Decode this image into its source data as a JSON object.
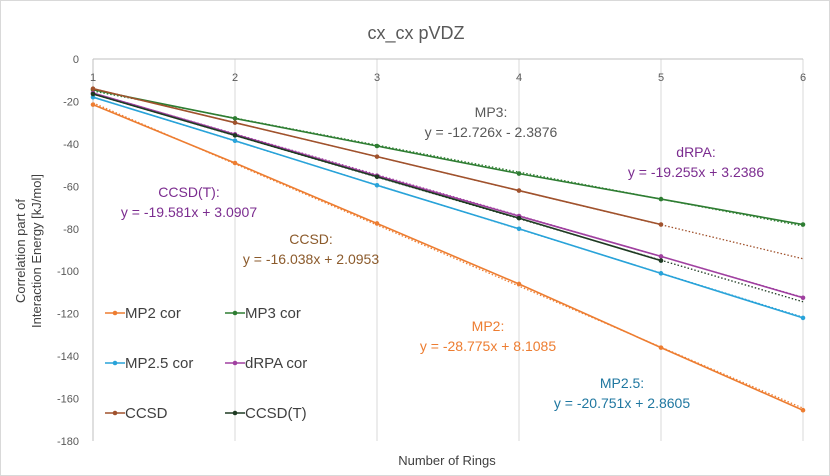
{
  "chart_data": {
    "type": "line",
    "title": "cx_cx pVDZ",
    "xlabel": "Number of Rings",
    "ylabel_lines": [
      "Correlation part of",
      "Interaction Energy  [kJ/mol]"
    ],
    "xlim": [
      1,
      6
    ],
    "ylim": [
      -180,
      0
    ],
    "x_ticks": [
      1,
      2,
      3,
      4,
      5,
      6
    ],
    "y_ticks": [
      0,
      -20,
      -40,
      -60,
      -80,
      -100,
      -120,
      -140,
      -160,
      -180
    ],
    "x_axis_position": "top",
    "grid": "vertical",
    "legend": "inside-bottom-left",
    "series": [
      {
        "name": "MP2 cor",
        "color": "#ED7D31",
        "x": [
          1,
          2,
          3,
          4,
          5,
          6
        ],
        "y": [
          -21.5,
          -49,
          -77.5,
          -106,
          -136,
          -165.5
        ],
        "trend": [
          -28.775,
          8.1085
        ],
        "trend_end": 6
      },
      {
        "name": "MP3 cor",
        "color": "#2E7D32",
        "x": [
          1,
          2,
          3,
          4,
          5,
          6
        ],
        "y": [
          -14.5,
          -28,
          -41,
          -54,
          -66,
          -78
        ],
        "trend": [
          -12.726,
          -2.3876
        ],
        "trend_end": 6
      },
      {
        "name": "MP2.5 cor",
        "color": "#29A3D9",
        "x": [
          1,
          2,
          3,
          4,
          5,
          6
        ],
        "y": [
          -18,
          -38.5,
          -59.5,
          -80,
          -101,
          -122
        ],
        "trend": [
          -20.751,
          2.8605
        ],
        "trend_end": 6
      },
      {
        "name": "dRPA cor",
        "color": "#A040A0",
        "x": [
          1,
          2,
          3,
          4,
          5,
          6
        ],
        "y": [
          -16,
          -35.5,
          -55,
          -74,
          -93,
          -112.5
        ],
        "trend": [
          -19.255,
          3.2386
        ],
        "trend_end": 6
      },
      {
        "name": "CCSD",
        "color": "#A0522D",
        "x": [
          1,
          2,
          3,
          4,
          5
        ],
        "y": [
          -14,
          -30,
          -46,
          -62,
          -78
        ],
        "trend": [
          -16.038,
          2.0953
        ],
        "trend_end": 6
      },
      {
        "name": "CCSD(T)",
        "color": "#1E3A22",
        "x": [
          1,
          2,
          3,
          4,
          5
        ],
        "y": [
          -16.5,
          -36,
          -55.5,
          -75,
          -95
        ],
        "trend": [
          -19.581,
          3.0907
        ],
        "trend_end": 6
      }
    ],
    "annotations": [
      {
        "name": "MP3",
        "lines": [
          "MP3:",
          "y = -12.726x - 2.3876"
        ],
        "color": "#595959"
      },
      {
        "name": "dRPA",
        "lines": [
          "dRPA:",
          "y = -19.255x + 3.2386"
        ],
        "color": "#7B2C8F"
      },
      {
        "name": "CCSD(T)",
        "lines": [
          "CCSD(T):",
          "y = -19.581x + 3.0907"
        ],
        "color": "#7B2C8F"
      },
      {
        "name": "CCSD",
        "lines": [
          "CCSD:",
          "y = -16.038x + 2.0953"
        ],
        "color": "#8B5A2B"
      },
      {
        "name": "MP2",
        "lines": [
          "MP2:",
          "y = -28.775x + 8.1085"
        ],
        "color": "#ED7D31"
      },
      {
        "name": "MP2.5",
        "lines": [
          "MP2.5:",
          "y = -20.751x + 2.8605"
        ],
        "color": "#1F77A0"
      }
    ]
  }
}
